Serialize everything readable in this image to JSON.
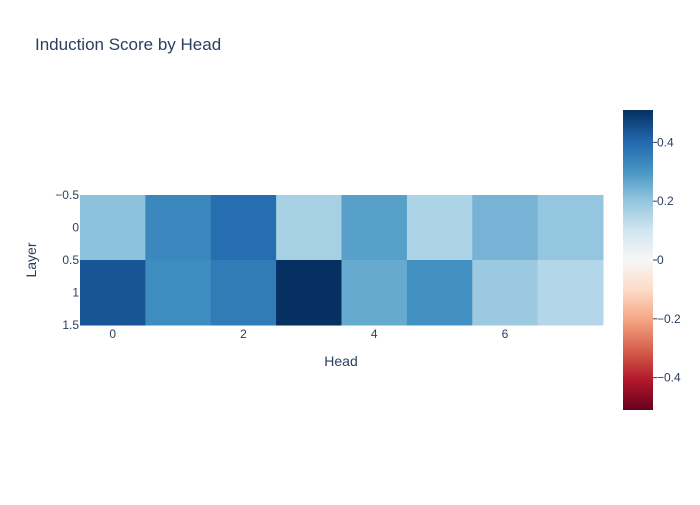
{
  "chart_data": {
    "type": "heatmap",
    "title": "Induction Score by Head",
    "xlabel": "Head",
    "ylabel": "Layer",
    "x": [
      0,
      1,
      2,
      3,
      4,
      5,
      6,
      7
    ],
    "y": [
      0,
      1
    ],
    "z": [
      [
        0.21,
        0.33,
        0.39,
        0.17,
        0.28,
        0.16,
        0.24,
        0.2
      ],
      [
        0.44,
        0.32,
        0.36,
        0.51,
        0.26,
        0.31,
        0.19,
        0.15
      ]
    ],
    "x_ticks": [
      "0",
      "2",
      "4",
      "6"
    ],
    "x_tick_values": [
      0,
      2,
      4,
      6
    ],
    "y_ticks": [
      "−0.5",
      "0",
      "0.5",
      "1",
      "1.5"
    ],
    "y_tick_values": [
      -0.5,
      0,
      0.5,
      1,
      1.5
    ],
    "xlim": [
      -0.5,
      7.5
    ],
    "ylim": [
      -0.5,
      1.5
    ],
    "colorscale": "RdBu",
    "zrange": [
      -0.51,
      0.51
    ],
    "colorbar_ticks": [
      "0.4",
      "0.2",
      "0",
      "−0.2",
      "−0.4"
    ],
    "colorbar_tick_values": [
      0.4,
      0.2,
      0,
      -0.2,
      -0.4
    ],
    "colors": {
      "text": "#2a3f5f",
      "scale": [
        "#67001f",
        "#b2182b",
        "#d6604d",
        "#f4a582",
        "#fddbc7",
        "#f7f7f7",
        "#d1e5f0",
        "#92c5de",
        "#4393c3",
        "#2166ac",
        "#053061"
      ]
    }
  }
}
